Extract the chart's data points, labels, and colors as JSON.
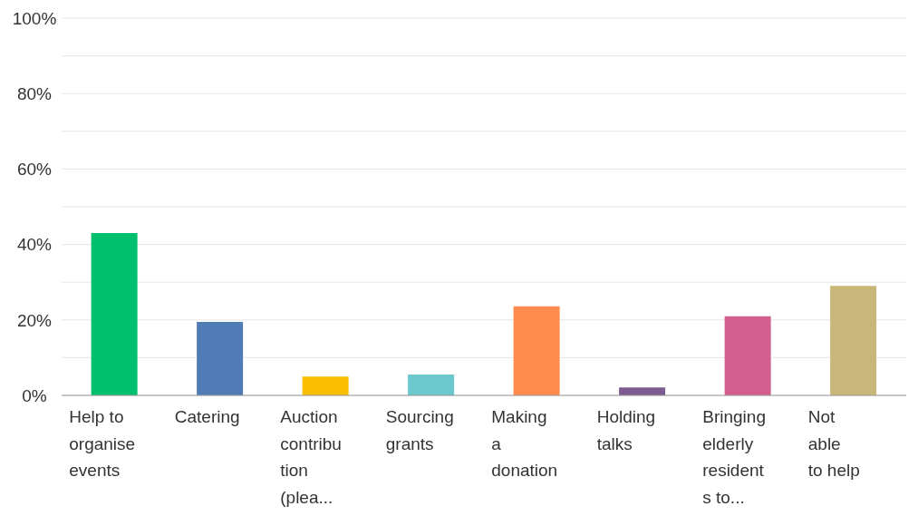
{
  "chart_data": {
    "type": "bar",
    "categories": [
      "Help to organise events",
      "Catering",
      "Auction contribution (plea...",
      "Sourcing grants",
      "Making a donation",
      "Holding talks",
      "Bringing elderly residents to...",
      "Not able to help"
    ],
    "values": [
      43,
      19.5,
      5,
      5.5,
      23.6,
      2.1,
      21,
      29
    ],
    "colors": [
      "#00bf6f",
      "#507cb6",
      "#f9be00",
      "#6bc8cd",
      "#ff8b4f",
      "#7d5c91",
      "#d25f90",
      "#c9b77a"
    ],
    "ylim": [
      0,
      100
    ],
    "yticks": [
      {
        "value": 0,
        "label": "0%"
      },
      {
        "value": 10,
        "label": null
      },
      {
        "value": 20,
        "label": "20%"
      },
      {
        "value": 30,
        "label": null
      },
      {
        "value": 40,
        "label": "40%"
      },
      {
        "value": 50,
        "label": null
      },
      {
        "value": 60,
        "label": "60%"
      },
      {
        "value": 70,
        "label": null
      },
      {
        "value": 80,
        "label": "80%"
      },
      {
        "value": 90,
        "label": null
      },
      {
        "value": 100,
        "label": "100%"
      }
    ],
    "grid": "y"
  }
}
